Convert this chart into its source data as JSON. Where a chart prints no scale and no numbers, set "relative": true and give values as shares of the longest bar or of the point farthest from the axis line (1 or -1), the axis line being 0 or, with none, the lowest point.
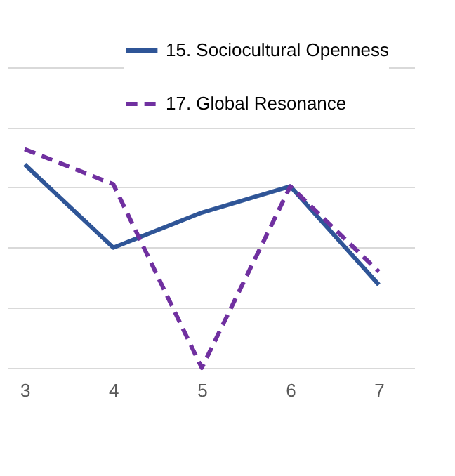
{
  "chart_data": {
    "type": "line",
    "relative": true,
    "categories": [
      "3",
      "4",
      "5",
      "6",
      "7"
    ],
    "series": [
      {
        "name": "15. Sociocultural Openness",
        "color": "#2f5597",
        "line_style": "solid",
        "values": [
          0.93,
          0.55,
          0.71,
          0.83,
          0.38
        ]
      },
      {
        "name": "17. Global Resonance",
        "color": "#7030a0",
        "line_style": "dashed",
        "values": [
          1,
          0.84,
          0,
          0.83,
          0.44
        ]
      }
    ],
    "grid": "y",
    "legend": "top right",
    "marker": "none"
  }
}
